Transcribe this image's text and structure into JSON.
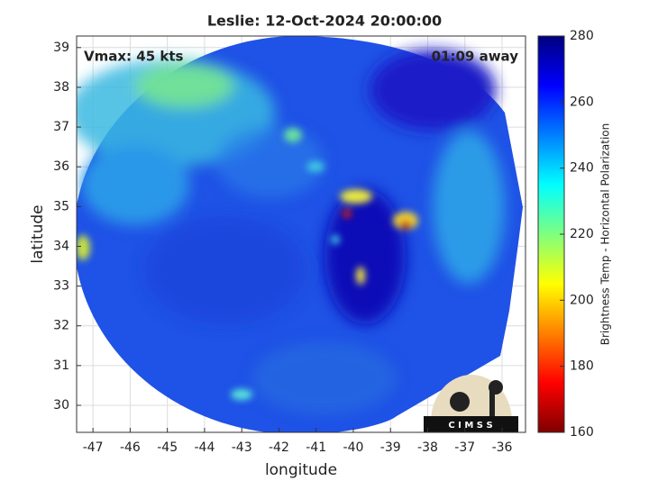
{
  "chart_data": {
    "type": "heatmap",
    "title": "Leslie: 12-Oct-2024 20:00:00",
    "annotations": [
      "Vmax: 45 kts",
      "01:09 away"
    ],
    "x_label": "longitude",
    "y_label": "latitude",
    "xlim": [
      -47.44,
      -35.37
    ],
    "xticks": [
      -47,
      -46,
      -45,
      -44,
      -43,
      -42,
      -41,
      -40,
      -39,
      -38,
      -37,
      -36
    ],
    "ylim": [
      29.32,
      39.29
    ],
    "yticks": [
      30,
      31,
      32,
      33,
      34,
      35,
      36,
      37,
      38,
      39
    ],
    "grid": true,
    "colormap": "jet",
    "colorbar": {
      "label": "Brightness Temp - Horizontal Polarization",
      "lim": [
        160,
        280
      ],
      "ticks": [
        160,
        180,
        200,
        220,
        240,
        260,
        280
      ]
    },
    "logo_text": "C I M S S"
  }
}
